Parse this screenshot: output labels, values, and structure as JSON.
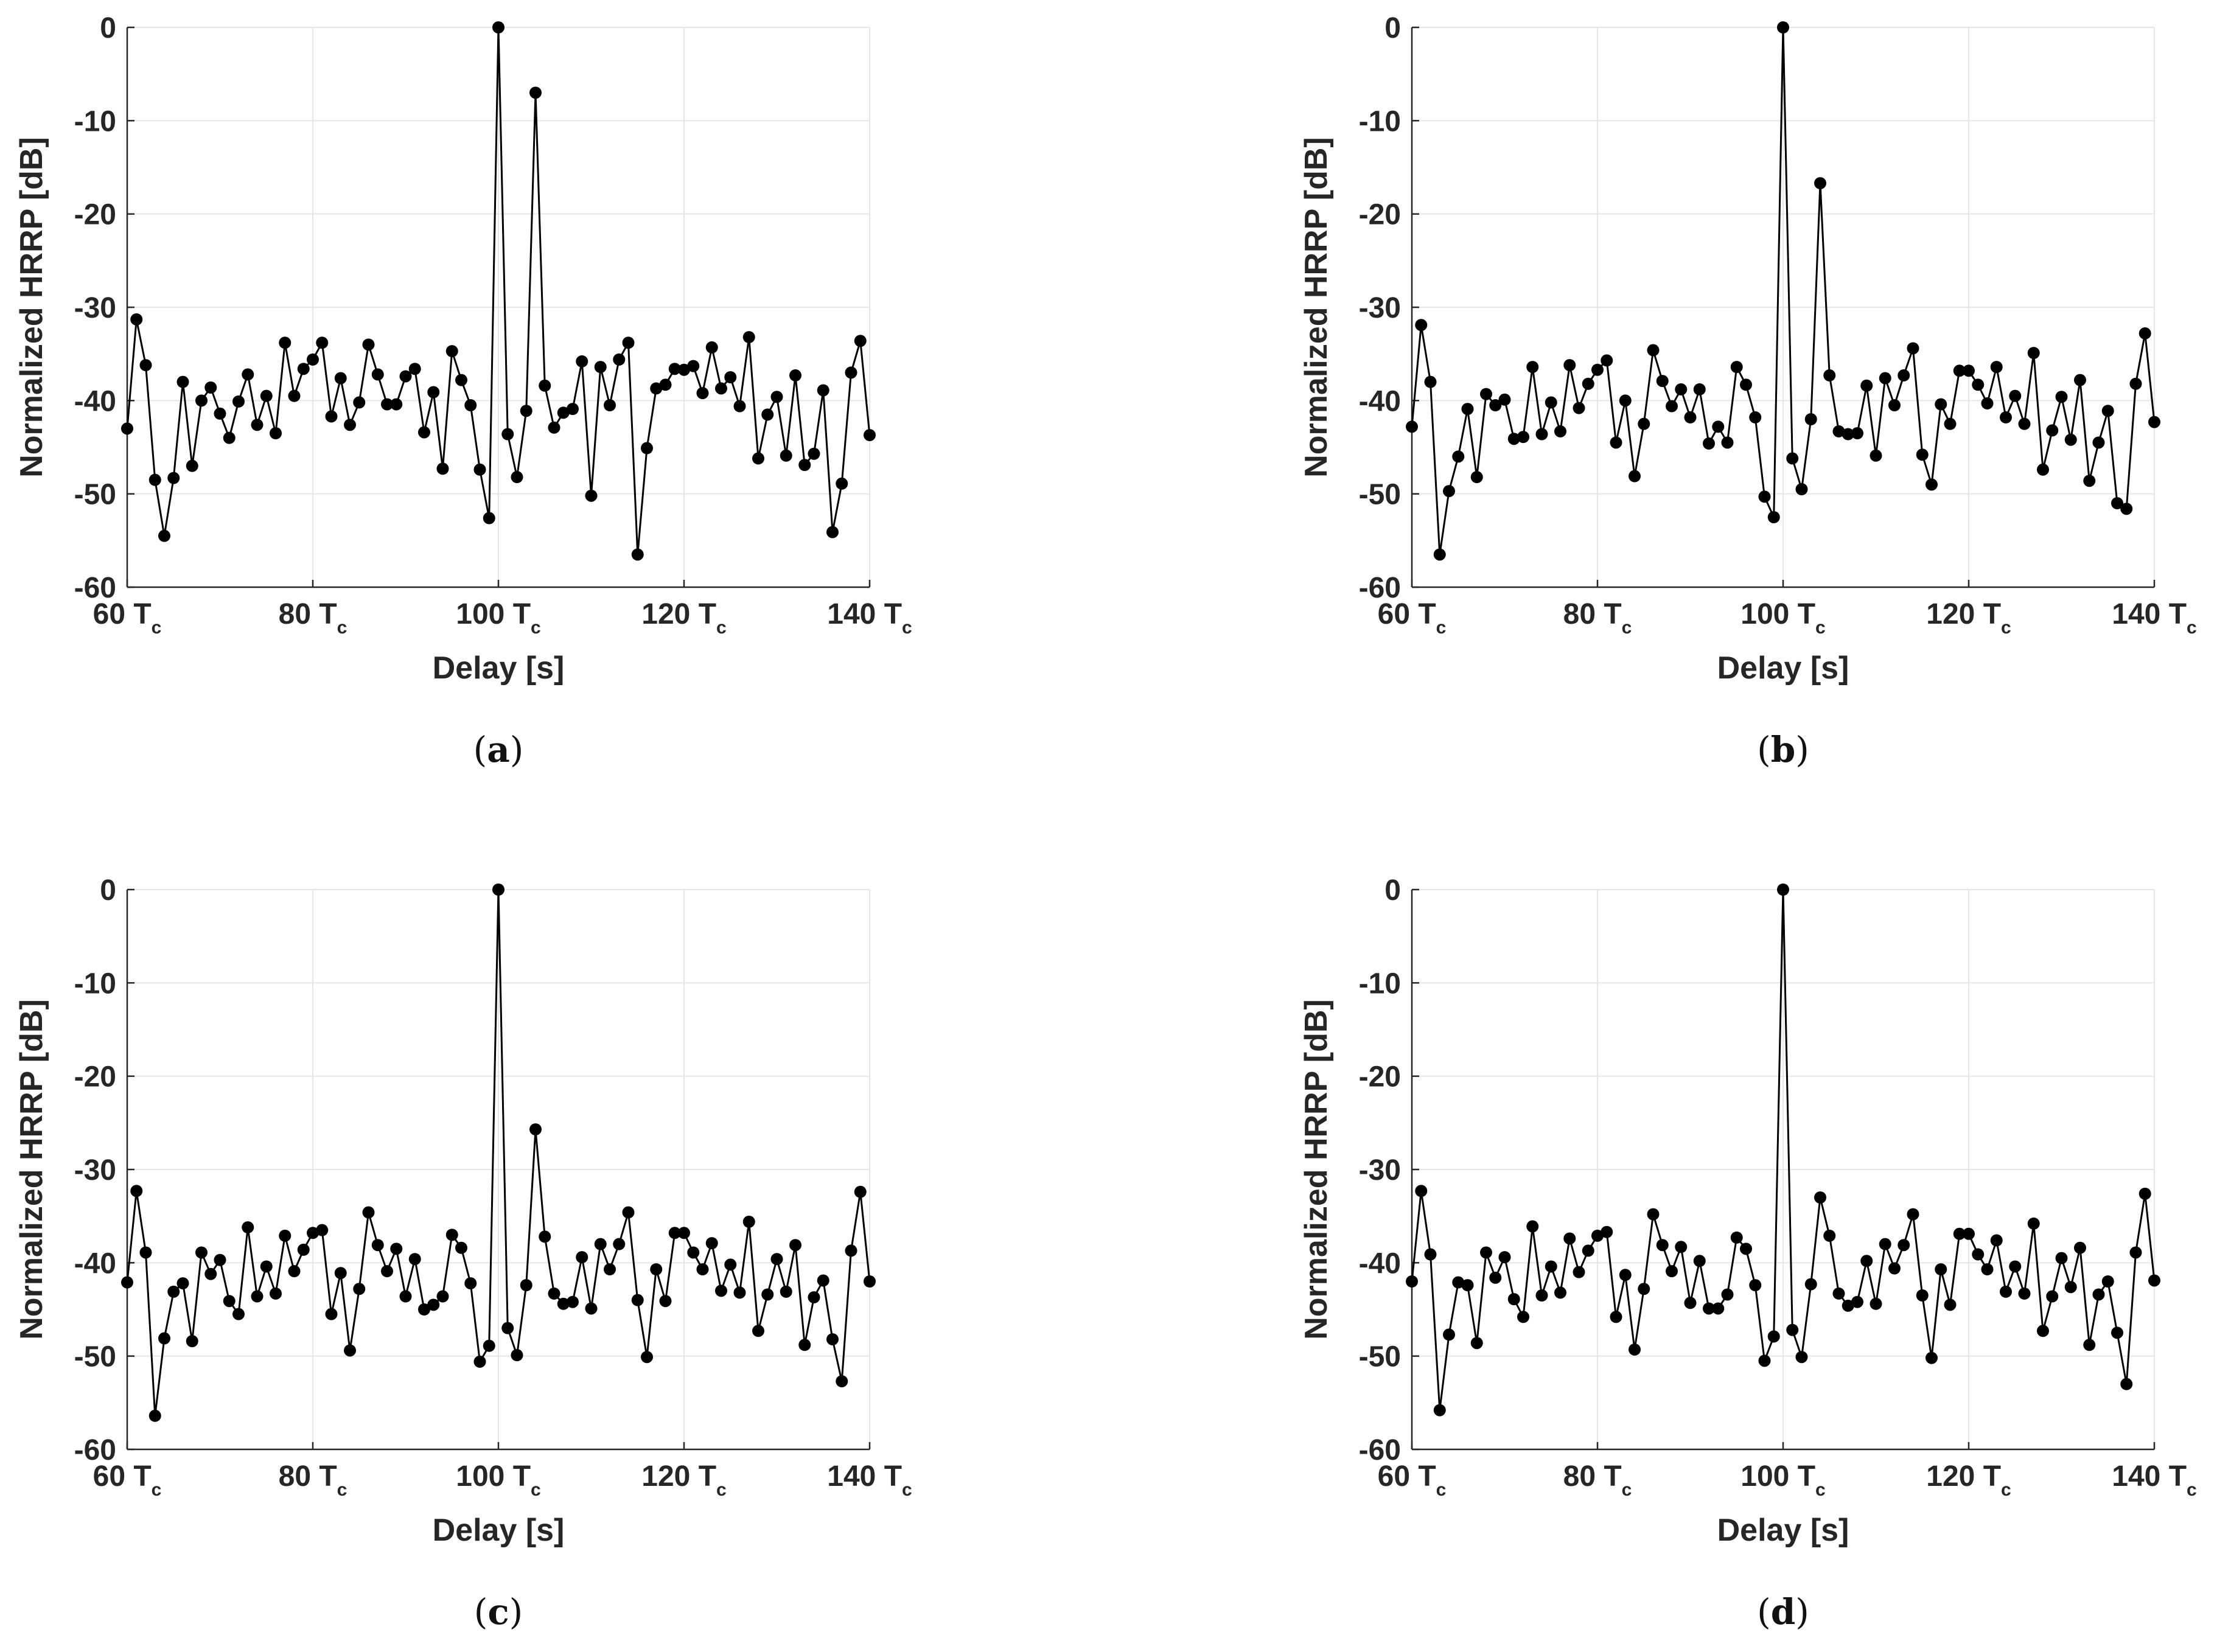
{
  "chart_data": [
    {
      "type": "line",
      "caption": "(a)",
      "xlabel": "Delay [s]",
      "ylabel": "Normalized HRRP [dB]",
      "xlim": [
        60,
        140
      ],
      "ylim": [
        -60,
        0
      ],
      "xticks": [
        60,
        80,
        100,
        120,
        140
      ],
      "xtick_labels": [
        "60 T",
        "80 T",
        "100 T",
        "120 T",
        "140 T"
      ],
      "xtick_subscript": "c",
      "yticks": [
        0,
        -10,
        -20,
        -30,
        -40,
        -50,
        -60
      ],
      "ytick_labels": [
        "0",
        "-10",
        "-20",
        "-30",
        "-40",
        "-50",
        "-60"
      ],
      "grid": true,
      "marker": "filled-circle",
      "color": "#000000",
      "x_start": 60,
      "x_step": 1,
      "values": [
        -43,
        -31.3,
        -36.2,
        -48.5,
        -54.5,
        -48.3,
        -38,
        -47,
        -40,
        -38.6,
        -41.4,
        -44,
        -40.1,
        -37.2,
        -42.6,
        -39.5,
        -43.5,
        -33.8,
        -39.5,
        -36.6,
        -35.6,
        -33.8,
        -41.7,
        -37.6,
        -42.6,
        -40.2,
        -34,
        -37.2,
        -40.4,
        -40.4,
        -37.4,
        -36.6,
        -43.4,
        -39.1,
        -47.3,
        -34.7,
        -37.8,
        -40.5,
        -47.4,
        -52.6,
        0,
        -43.6,
        -48.2,
        -41.1,
        -7,
        -38.4,
        -42.9,
        -41.3,
        -40.9,
        -35.8,
        -50.2,
        -36.4,
        -40.5,
        -35.6,
        -33.8,
        -56.5,
        -45.1,
        -38.7,
        -38.3,
        -36.6,
        -36.7,
        -36.3,
        -39.2,
        -34.3,
        -38.7,
        -37.5,
        -40.6,
        -33.2,
        -46.2,
        -41.5,
        -39.6,
        -45.9,
        -37.3,
        -46.9,
        -45.7,
        -38.9,
        -54.1,
        -48.9,
        -37,
        -33.6,
        -43.7
      ]
    },
    {
      "type": "line",
      "caption": "(b)",
      "xlabel": "Delay [s]",
      "ylabel": "Normalized HRRP [dB]",
      "xlim": [
        60,
        140
      ],
      "ylim": [
        -60,
        0
      ],
      "xticks": [
        60,
        80,
        100,
        120,
        140
      ],
      "xtick_labels": [
        "60 T",
        "80 T",
        "100 T",
        "120 T",
        "140 T"
      ],
      "xtick_subscript": "c",
      "yticks": [
        0,
        -10,
        -20,
        -30,
        -40,
        -50,
        -60
      ],
      "ytick_labels": [
        "0",
        "-10",
        "-20",
        "-30",
        "-40",
        "-50",
        "-60"
      ],
      "grid": true,
      "marker": "filled-circle",
      "color": "#000000",
      "x_start": 60,
      "x_step": 1,
      "values": [
        -42.8,
        -31.9,
        -38,
        -56.5,
        -49.7,
        -46,
        -40.9,
        -48.2,
        -39.3,
        -40.5,
        -39.9,
        -44.1,
        -43.9,
        -36.4,
        -43.6,
        -40.2,
        -43.3,
        -36.2,
        -40.8,
        -38.2,
        -36.7,
        -35.7,
        -44.5,
        -40,
        -48.1,
        -42.5,
        -34.6,
        -37.9,
        -40.6,
        -38.8,
        -41.8,
        -38.8,
        -44.6,
        -42.8,
        -44.5,
        -36.4,
        -38.3,
        -41.8,
        -50.3,
        -52.5,
        0,
        -46.2,
        -49.5,
        -42,
        -16.7,
        -37.3,
        -43.3,
        -43.6,
        -43.5,
        -38.4,
        -45.9,
        -37.6,
        -40.5,
        -37.3,
        -34.4,
        -45.8,
        -49,
        -40.4,
        -42.5,
        -36.8,
        -36.8,
        -38.3,
        -40.3,
        -36.4,
        -41.8,
        -39.5,
        -42.5,
        -34.9,
        -47.4,
        -43.2,
        -39.6,
        -44.2,
        -37.8,
        -48.6,
        -44.5,
        -41.1,
        -51,
        -51.6,
        -38.2,
        -32.8,
        -42.3
      ]
    },
    {
      "type": "line",
      "caption": "(c)",
      "xlabel": "Delay [s]",
      "ylabel": "Normalized HRRP [dB]",
      "xlim": [
        60,
        140
      ],
      "ylim": [
        -60,
        0
      ],
      "xticks": [
        60,
        80,
        100,
        120,
        140
      ],
      "xtick_labels": [
        "60 T",
        "80 T",
        "100 T",
        "120 T",
        "140 T"
      ],
      "xtick_subscript": "c",
      "yticks": [
        0,
        -10,
        -20,
        -30,
        -40,
        -50,
        -60
      ],
      "ytick_labels": [
        "0",
        "-10",
        "-20",
        "-30",
        "-40",
        "-50",
        "-60"
      ],
      "grid": true,
      "marker": "filled-circle",
      "color": "#000000",
      "x_start": 60,
      "x_step": 1,
      "values": [
        -42.1,
        -32.3,
        -38.9,
        -56.4,
        -48.1,
        -43.1,
        -42.2,
        -48.4,
        -38.9,
        -41.2,
        -39.7,
        -44.1,
        -45.5,
        -36.2,
        -43.6,
        -40.4,
        -43.3,
        -37.1,
        -40.9,
        -38.6,
        -36.8,
        -36.5,
        -45.5,
        -41.1,
        -49.4,
        -42.8,
        -34.6,
        -38.1,
        -40.9,
        -38.5,
        -43.6,
        -39.6,
        -45,
        -44.5,
        -43.6,
        -37,
        -38.4,
        -42.2,
        -50.6,
        -48.9,
        0,
        -47,
        -49.9,
        -42.4,
        -25.7,
        -37.2,
        -43.3,
        -44.4,
        -44.2,
        -39.4,
        -44.9,
        -38,
        -40.7,
        -38,
        -34.6,
        -44,
        -50.1,
        -40.7,
        -44.1,
        -36.8,
        -36.8,
        -38.9,
        -40.7,
        -37.9,
        -43,
        -40.2,
        -43.2,
        -35.6,
        -47.3,
        -43.4,
        -39.6,
        -43.1,
        -38.1,
        -48.8,
        -43.7,
        -41.9,
        -48.2,
        -52.7,
        -38.7,
        -32.4,
        -42
      ]
    },
    {
      "type": "line",
      "caption": "(d)",
      "xlabel": "Delay [s]",
      "ylabel": "Normalized HRRP [dB]",
      "xlim": [
        60,
        140
      ],
      "ylim": [
        -60,
        0
      ],
      "xticks": [
        60,
        80,
        100,
        120,
        140
      ],
      "xtick_labels": [
        "60 T",
        "80 T",
        "100 T",
        "120 T",
        "140 T"
      ],
      "xtick_subscript": "c",
      "yticks": [
        0,
        -10,
        -20,
        -30,
        -40,
        -50,
        -60
      ],
      "ytick_labels": [
        "0",
        "-10",
        "-20",
        "-30",
        "-40",
        "-50",
        "-60"
      ],
      "grid": true,
      "marker": "filled-circle",
      "color": "#000000",
      "x_start": 60,
      "x_step": 1,
      "values": [
        -42,
        -32.3,
        -39.1,
        -55.8,
        -47.7,
        -42.1,
        -42.4,
        -48.6,
        -38.9,
        -41.6,
        -39.4,
        -43.9,
        -45.8,
        -36.1,
        -43.5,
        -40.4,
        -43.2,
        -37.4,
        -41,
        -38.7,
        -37.1,
        -36.7,
        -45.8,
        -41.3,
        -49.3,
        -42.8,
        -34.8,
        -38.1,
        -40.9,
        -38.3,
        -44.3,
        -39.8,
        -44.9,
        -44.9,
        -43.4,
        -37.3,
        -38.5,
        -42.4,
        -50.5,
        -47.9,
        0,
        -47.2,
        -50.1,
        -42.3,
        -33,
        -37.1,
        -43.3,
        -44.6,
        -44.2,
        -39.8,
        -44.4,
        -38,
        -40.6,
        -38.1,
        -34.8,
        -43.5,
        -50.2,
        -40.7,
        -44.5,
        -36.9,
        -36.9,
        -39.1,
        -40.7,
        -37.6,
        -43.1,
        -40.4,
        -43.3,
        -35.8,
        -47.3,
        -43.6,
        -39.5,
        -42.6,
        -38.4,
        -48.8,
        -43.4,
        -42,
        -47.5,
        -53,
        -38.9,
        -32.6,
        -41.9
      ]
    }
  ]
}
